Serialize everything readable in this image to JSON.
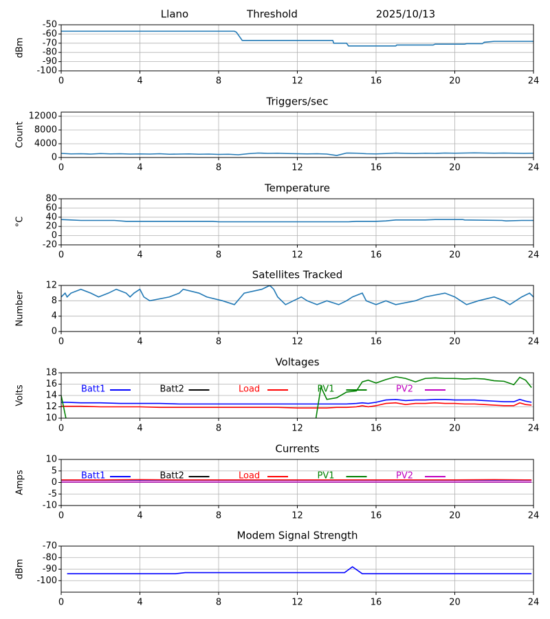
{
  "chart_data": [
    {
      "type": "line",
      "titles": [
        "Llano",
        "Threshold",
        "2025/10/13"
      ],
      "ylabel": "dBm",
      "x": [
        0,
        8.8,
        8.9,
        9.2,
        13.8,
        13.85,
        14.5,
        14.6,
        17,
        17.05,
        18.9,
        19,
        20.5,
        20.6,
        21.4,
        21.5,
        22,
        24
      ],
      "series": [
        {
          "color": "#1f77b4",
          "values": [
            -57,
            -57,
            -58,
            -67,
            -67,
            -70,
            -70,
            -73,
            -73,
            -72,
            -72,
            -71,
            -71,
            -70.5,
            -70.5,
            -69,
            -68,
            -68
          ]
        }
      ],
      "xlim": [
        0,
        24
      ],
      "xticks": [
        0,
        4,
        8,
        12,
        16,
        20,
        24
      ],
      "ylim": [
        -100,
        -50
      ],
      "yticks": [
        -100,
        -90,
        -80,
        -70,
        -60,
        -50
      ],
      "grid": true
    },
    {
      "type": "line",
      "title": "Triggers/sec",
      "ylabel": "Count",
      "x": [
        0,
        0.5,
        1,
        1.5,
        2,
        2.5,
        3,
        3.5,
        4,
        4.5,
        5,
        5.5,
        6,
        6.5,
        7,
        7.5,
        8,
        8.5,
        9,
        9.5,
        10,
        10.5,
        11,
        11.5,
        12,
        12.5,
        13,
        13.5,
        14,
        14.5,
        15,
        15.5,
        16,
        16.5,
        17,
        17.5,
        18,
        18.5,
        19,
        19.5,
        20,
        20.5,
        21,
        21.5,
        22,
        22.5,
        23,
        23.5,
        24
      ],
      "series": [
        {
          "color": "#1f77b4",
          "values": [
            1200,
            1050,
            1100,
            1000,
            1150,
            1050,
            1100,
            1000,
            1050,
            1000,
            1100,
            950,
            1000,
            1050,
            950,
            1000,
            900,
            950,
            800,
            1100,
            1300,
            1200,
            1250,
            1150,
            1100,
            1050,
            1100,
            1000,
            600,
            1300,
            1250,
            1100,
            1050,
            1150,
            1300,
            1200,
            1150,
            1250,
            1200,
            1300,
            1250,
            1300,
            1350,
            1300,
            1250,
            1300,
            1250,
            1200,
            1250
          ]
        }
      ],
      "xlim": [
        0,
        24
      ],
      "xticks": [
        0,
        4,
        8,
        12,
        16,
        20,
        24
      ],
      "ylim": [
        0,
        13200
      ],
      "yticks": [
        0,
        4000,
        8000,
        12000
      ],
      "grid": true
    },
    {
      "type": "line",
      "title": "Temperature",
      "ylabel": "°C",
      "x": [
        0,
        0.5,
        1,
        2.7,
        3.3,
        5,
        7.7,
        8,
        10,
        13.9,
        14.6,
        15,
        16,
        16.5,
        17,
        18.5,
        19,
        20.4,
        20.5,
        22.4,
        22.6,
        23.4,
        24
      ],
      "series": [
        {
          "color": "#1f77b4",
          "values": [
            35,
            34,
            33,
            33,
            31,
            31,
            31,
            30,
            30,
            30,
            30,
            31,
            31,
            32,
            34,
            34,
            35,
            35,
            34,
            33,
            32,
            33,
            33
          ]
        }
      ],
      "xlim": [
        0,
        24
      ],
      "xticks": [
        0,
        4,
        8,
        12,
        16,
        20,
        24
      ],
      "ylim": [
        -20,
        80
      ],
      "yticks": [
        -20,
        0,
        20,
        40,
        60,
        80
      ],
      "grid": true
    },
    {
      "type": "line",
      "title": "Satellites Tracked",
      "ylabel": "Number",
      "x": [
        0,
        0.2,
        0.3,
        0.5,
        1,
        1.5,
        1.9,
        2.4,
        2.8,
        3.3,
        3.5,
        3.7,
        4.0,
        4.2,
        4.5,
        5.5,
        6.0,
        6.2,
        7.0,
        7.4,
        8.2,
        8.8,
        9.3,
        10.2,
        10.6,
        10.8,
        11.0,
        11.4,
        11.8,
        12.2,
        12.5,
        13.0,
        13.5,
        14.1,
        14.5,
        14.8,
        15.3,
        15.5,
        16.0,
        16.5,
        17.0,
        18.0,
        18.5,
        19.5,
        20.0,
        20.3,
        20.6,
        21.2,
        22.0,
        22.5,
        22.8,
        23.4,
        23.8,
        24
      ],
      "series": [
        {
          "color": "#1f77b4",
          "values": [
            9,
            10,
            9,
            10,
            11,
            10,
            9,
            10,
            11,
            10,
            9,
            10,
            11,
            9,
            8,
            9,
            10,
            11,
            10,
            9,
            8,
            7,
            10,
            11,
            12,
            11,
            9,
            7,
            8,
            9,
            8,
            7,
            8,
            7,
            8,
            9,
            10,
            8,
            7,
            8,
            7,
            8,
            9,
            10,
            9,
            8,
            7,
            8,
            9,
            8,
            7,
            9,
            10,
            9
          ]
        }
      ],
      "xlim": [
        0,
        24
      ],
      "xticks": [
        0,
        4,
        8,
        12,
        16,
        20,
        24
      ],
      "ylim": [
        0,
        12
      ],
      "yticks": [
        0,
        4,
        8,
        12
      ],
      "grid": true
    },
    {
      "type": "line",
      "title": "Voltages",
      "ylabel": "Volts",
      "x": [
        0,
        0.3,
        1,
        2,
        3,
        4,
        5,
        6,
        7,
        8,
        9,
        10,
        11,
        12,
        12.9,
        13.2,
        13.5,
        14,
        14.5,
        15,
        15.3,
        15.6,
        16,
        16.5,
        17,
        17.5,
        18,
        18.5,
        19,
        19.5,
        20,
        20.5,
        21,
        21.5,
        22,
        22.5,
        23,
        23.3,
        23.6,
        23.9
      ],
      "series": [
        {
          "name": "Batt1",
          "color": "#0000ff",
          "values": [
            12.8,
            12.8,
            12.7,
            12.7,
            12.6,
            12.6,
            12.6,
            12.5,
            12.5,
            12.5,
            12.5,
            12.5,
            12.5,
            12.5,
            12.5,
            12.5,
            12.5,
            12.5,
            12.5,
            12.6,
            12.7,
            12.6,
            12.8,
            13.2,
            13.3,
            13.1,
            13.2,
            13.2,
            13.3,
            13.3,
            13.2,
            13.2,
            13.2,
            13.1,
            13.0,
            12.9,
            12.9,
            13.3,
            13.0,
            12.8
          ]
        },
        {
          "name": "Batt2",
          "color": "#000000",
          "values": [
            null,
            null,
            null,
            null,
            null,
            null,
            null,
            null,
            null,
            null,
            null,
            null,
            null,
            null,
            null,
            null,
            null,
            null,
            null,
            null,
            null,
            null,
            null,
            null,
            null,
            null,
            null,
            null,
            null,
            null,
            null,
            null,
            null,
            null,
            null,
            null,
            null,
            null,
            null,
            null
          ]
        },
        {
          "name": "Load",
          "color": "#ff0000",
          "values": [
            12.1,
            12.1,
            12.1,
            12.0,
            12.0,
            12.0,
            11.9,
            11.9,
            11.9,
            11.9,
            11.9,
            11.9,
            11.9,
            11.8,
            11.8,
            11.8,
            11.8,
            11.9,
            11.9,
            12.0,
            12.2,
            12.0,
            12.2,
            12.6,
            12.7,
            12.4,
            12.6,
            12.6,
            12.7,
            12.6,
            12.6,
            12.5,
            12.5,
            12.4,
            12.3,
            12.2,
            12.2,
            12.7,
            12.4,
            12.3
          ]
        },
        {
          "name": "PV1",
          "color": "#008000",
          "values": [
            14,
            9,
            null,
            null,
            null,
            null,
            null,
            null,
            null,
            null,
            null,
            null,
            null,
            null,
            9,
            15.5,
            13.3,
            13.6,
            14.6,
            14.8,
            16.4,
            16.7,
            16.2,
            16.8,
            17.3,
            17.0,
            16.4,
            17.0,
            17.1,
            17.0,
            17.0,
            16.9,
            17.0,
            16.9,
            16.6,
            16.5,
            15.9,
            17.2,
            16.7,
            15.4
          ]
        },
        {
          "name": "PV2",
          "color": "#bf00bf",
          "values": [
            null,
            null,
            null,
            null,
            null,
            null,
            null,
            null,
            null,
            null,
            null,
            null,
            null,
            null,
            null,
            null,
            null,
            null,
            null,
            null,
            null,
            null,
            null,
            null,
            null,
            null,
            null,
            null,
            null,
            null,
            null,
            null,
            null,
            null,
            null,
            null,
            null,
            null,
            null,
            null
          ]
        }
      ],
      "xlim": [
        0,
        24
      ],
      "xticks": [
        0,
        4,
        8,
        12,
        16,
        20,
        24
      ],
      "ylim": [
        10,
        18
      ],
      "yticks": [
        10,
        12,
        14,
        16,
        18
      ],
      "grid": true,
      "legend": true
    },
    {
      "type": "line",
      "title": "Currents",
      "ylabel": "Amps",
      "x": [
        0,
        2,
        4,
        6,
        8,
        10,
        12,
        14,
        16,
        18,
        20,
        22,
        23.9
      ],
      "series": [
        {
          "name": "Batt1",
          "color": "#0000ff",
          "values": [
            1.0,
            1.0,
            1.0,
            1.0,
            1.0,
            1.0,
            1.0,
            1.0,
            1.0,
            1.0,
            1.0,
            1.0,
            1.0
          ]
        },
        {
          "name": "Batt2",
          "color": "#000000",
          "values": [
            null,
            null,
            null,
            null,
            null,
            null,
            null,
            null,
            null,
            null,
            null,
            null,
            null
          ]
        },
        {
          "name": "Load",
          "color": "#ff0000",
          "values": [
            1.1,
            1.1,
            1.2,
            1.1,
            1.1,
            1.1,
            1.1,
            1.1,
            1.1,
            1.1,
            1.1,
            1.2,
            1.1
          ]
        },
        {
          "name": "PV1",
          "color": "#008000",
          "values": [
            0.2,
            0.2,
            0.2,
            0.2,
            0.2,
            0.2,
            0.2,
            0.2,
            0.2,
            0.2,
            0.2,
            0.2,
            0.2
          ]
        },
        {
          "name": "PV2",
          "color": "#bf00bf",
          "values": [
            0.2,
            0.2,
            0.2,
            0.2,
            0.2,
            0.2,
            0.2,
            0.2,
            0.2,
            0.2,
            0.2,
            0.2,
            0.2
          ]
        }
      ],
      "xlim": [
        0,
        24
      ],
      "xticks": [
        0,
        4,
        8,
        12,
        16,
        20,
        24
      ],
      "ylim": [
        -10,
        10
      ],
      "yticks": [
        -10,
        -5,
        0,
        5,
        10
      ],
      "grid": true,
      "legend": true
    },
    {
      "type": "line",
      "title": "Modem Signal Strength",
      "ylabel": "dBm",
      "x": [
        0.3,
        5.8,
        6.3,
        14.4,
        14.8,
        15.3,
        23.9
      ],
      "series": [
        {
          "color": "#0000ff",
          "values": [
            -94,
            -94,
            -93,
            -93,
            -88,
            -94,
            -94
          ]
        }
      ],
      "xlim": [
        0,
        24
      ],
      "xticks": [
        0,
        4,
        8,
        12,
        16,
        20,
        24
      ],
      "ylim": [
        -110,
        -70
      ],
      "yticks": [
        -100,
        -90,
        -80,
        -70
      ],
      "grid": true
    }
  ]
}
